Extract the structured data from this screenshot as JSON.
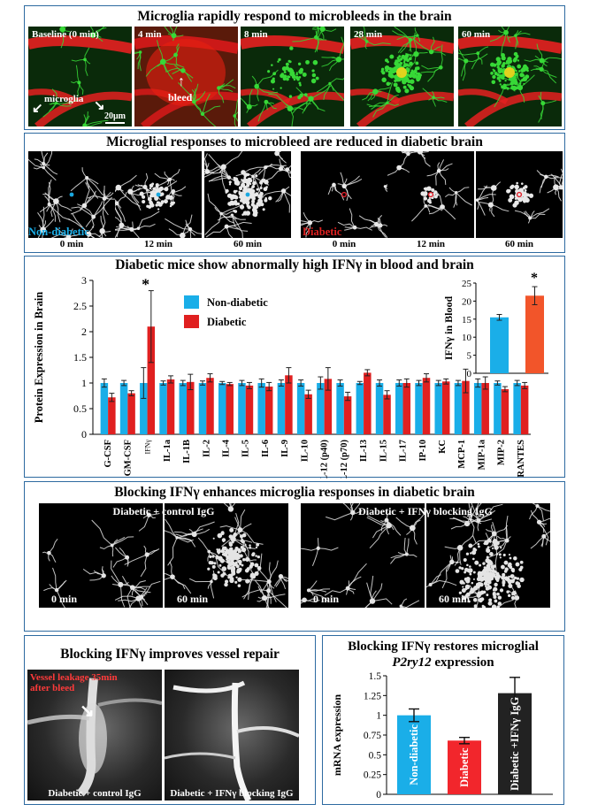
{
  "panelA": {
    "title": "Microglia rapidly respond to microbleeds in the brain",
    "frames": [
      "Baseline (0 min)",
      "4 min",
      "8 min",
      "28 min",
      "60 min"
    ],
    "annotation_microglia": "microglia",
    "annotation_bleed": "bleed",
    "scale_bar": "20μm"
  },
  "panelB": {
    "title": "Microglial responses to microbleed are reduced in diabetic brain",
    "group_nondiabetic": "Non-diabetic",
    "group_diabetic": "Diabetic",
    "times": [
      "0 min",
      "12 min",
      "60 min"
    ]
  },
  "panelC": {
    "title": "Diabetic mice show abnormally high IFNγ in blood and brain",
    "colors": {
      "nondiabetic": "#1aaee8",
      "diabetic": "#e02020",
      "blood_diabetic": "#f2552a"
    }
  },
  "chart_data": [
    {
      "type": "bar",
      "ylabel": "Protein Expression in Brain",
      "ylim": [
        0,
        3
      ],
      "yticks": [
        "0",
        "0.5",
        "1",
        "1.5",
        "2",
        "2.5",
        "3"
      ],
      "categories": [
        "G-CSF",
        "GM-CSF",
        "IFNγ",
        "IL-1a",
        "IL-1B",
        "IL-2",
        "IL-4",
        "IL-5",
        "IL-6",
        "IL-9",
        "IL-10",
        "IL-12 (p40)",
        "IL-12 (p70)",
        "IL-13",
        "IL-15",
        "IL-17",
        "IP-10",
        "KC",
        "MCP-1",
        "MIP-1a",
        "MIP-2",
        "RANTES"
      ],
      "series": [
        {
          "name": "Non-diabetic",
          "values": [
            1.0,
            1.0,
            1.0,
            1.0,
            1.0,
            1.0,
            1.0,
            1.0,
            1.0,
            1.0,
            1.0,
            1.0,
            1.0,
            1.0,
            1.0,
            1.0,
            1.0,
            1.0,
            1.0,
            1.0,
            1.0,
            1.0
          ],
          "errors": [
            0.08,
            0.05,
            0.3,
            0.04,
            0.05,
            0.04,
            0.03,
            0.05,
            0.08,
            0.06,
            0.06,
            0.12,
            0.06,
            0.03,
            0.06,
            0.06,
            0.05,
            0.05,
            0.05,
            0.08,
            0.04,
            0.05
          ]
        },
        {
          "name": "Diabetic",
          "values": [
            0.72,
            0.8,
            2.1,
            1.07,
            1.02,
            1.1,
            0.98,
            0.95,
            0.93,
            1.15,
            0.78,
            1.08,
            0.74,
            1.2,
            0.77,
            1.0,
            1.1,
            1.03,
            1.04,
            1.0,
            0.88,
            0.95
          ],
          "errors": [
            0.08,
            0.05,
            0.7,
            0.07,
            0.15,
            0.08,
            0.03,
            0.06,
            0.08,
            0.15,
            0.08,
            0.22,
            0.08,
            0.06,
            0.08,
            0.08,
            0.08,
            0.05,
            0.23,
            0.12,
            0.05,
            0.06
          ]
        }
      ],
      "annotations": [
        "*"
      ]
    },
    {
      "type": "bar",
      "ylabel": "IFNγ in Blood",
      "ylim": [
        0,
        25
      ],
      "yticks": [
        "0",
        "5",
        "10",
        "15",
        "20",
        "25"
      ],
      "categories": [
        "Non-diabetic",
        "Diabetic"
      ],
      "values": [
        15.5,
        21.5
      ],
      "errors": [
        0.8,
        2.5
      ],
      "annotations": [
        "*"
      ]
    },
    {
      "type": "bar",
      "ylabel": "mRNA expression",
      "ylim": [
        0,
        1.5
      ],
      "yticks": [
        "0",
        "0.25",
        "0.5",
        "0.75",
        "1",
        "1.25",
        "1.5"
      ],
      "categories": [
        "Non-diabetic",
        "Diabetic",
        "Diabetic +IFNγ IgG"
      ],
      "values": [
        1.0,
        0.68,
        1.28
      ],
      "errors": [
        0.08,
        0.04,
        0.2
      ],
      "colors": [
        "#1aaee8",
        "#f2262c",
        "#222222"
      ]
    }
  ],
  "panelD": {
    "title": "Blocking IFNγ enhances microglia responses in diabetic brain",
    "group_control": "Diabetic + control IgG",
    "group_blocking": "Diabetic + IFNγ blocking IgG",
    "times": [
      "0 min",
      "60 min"
    ]
  },
  "panelE": {
    "title": "Blocking IFNγ improves vessel repair",
    "annotation": "Vessel leakage 35min after bleed",
    "label_control": "Diabetic + control IgG",
    "label_blocking": "Diabetic + IFNγ blocking IgG"
  },
  "panelF": {
    "title_line1": "Blocking IFNγ restores microglial",
    "title_gene": "P2ry12",
    "title_suffix": " expression"
  }
}
